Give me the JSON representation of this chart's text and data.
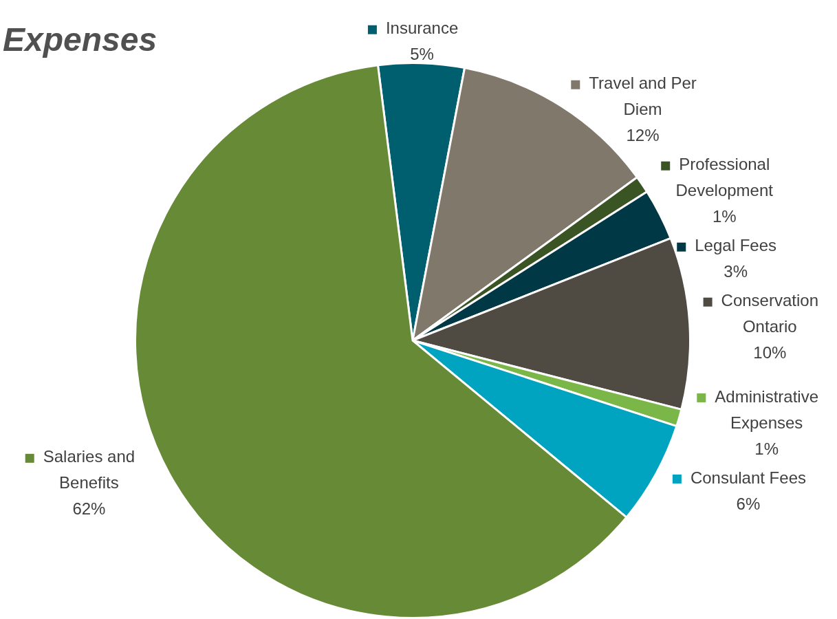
{
  "chart_data": {
    "type": "pie",
    "title": "Expenses",
    "categories": [
      "Insurance",
      "Travel and Per Diem",
      "Professional Development",
      "Legal Fees",
      "Conservation Ontario",
      "Administrative Expenses",
      "Consulant Fees",
      "Salaries and Benefits"
    ],
    "values": [
      5,
      12,
      1,
      3,
      10,
      1,
      6,
      62
    ],
    "value_labels": [
      "5%",
      "12%",
      "1%",
      "3%",
      "10%",
      "1%",
      "6%",
      "62%"
    ],
    "colors": [
      "#005f6e",
      "#80786b",
      "#3a5424",
      "#003945",
      "#4f4a42",
      "#7ab648",
      "#00a3c0",
      "#678a37"
    ],
    "legend": "right"
  }
}
